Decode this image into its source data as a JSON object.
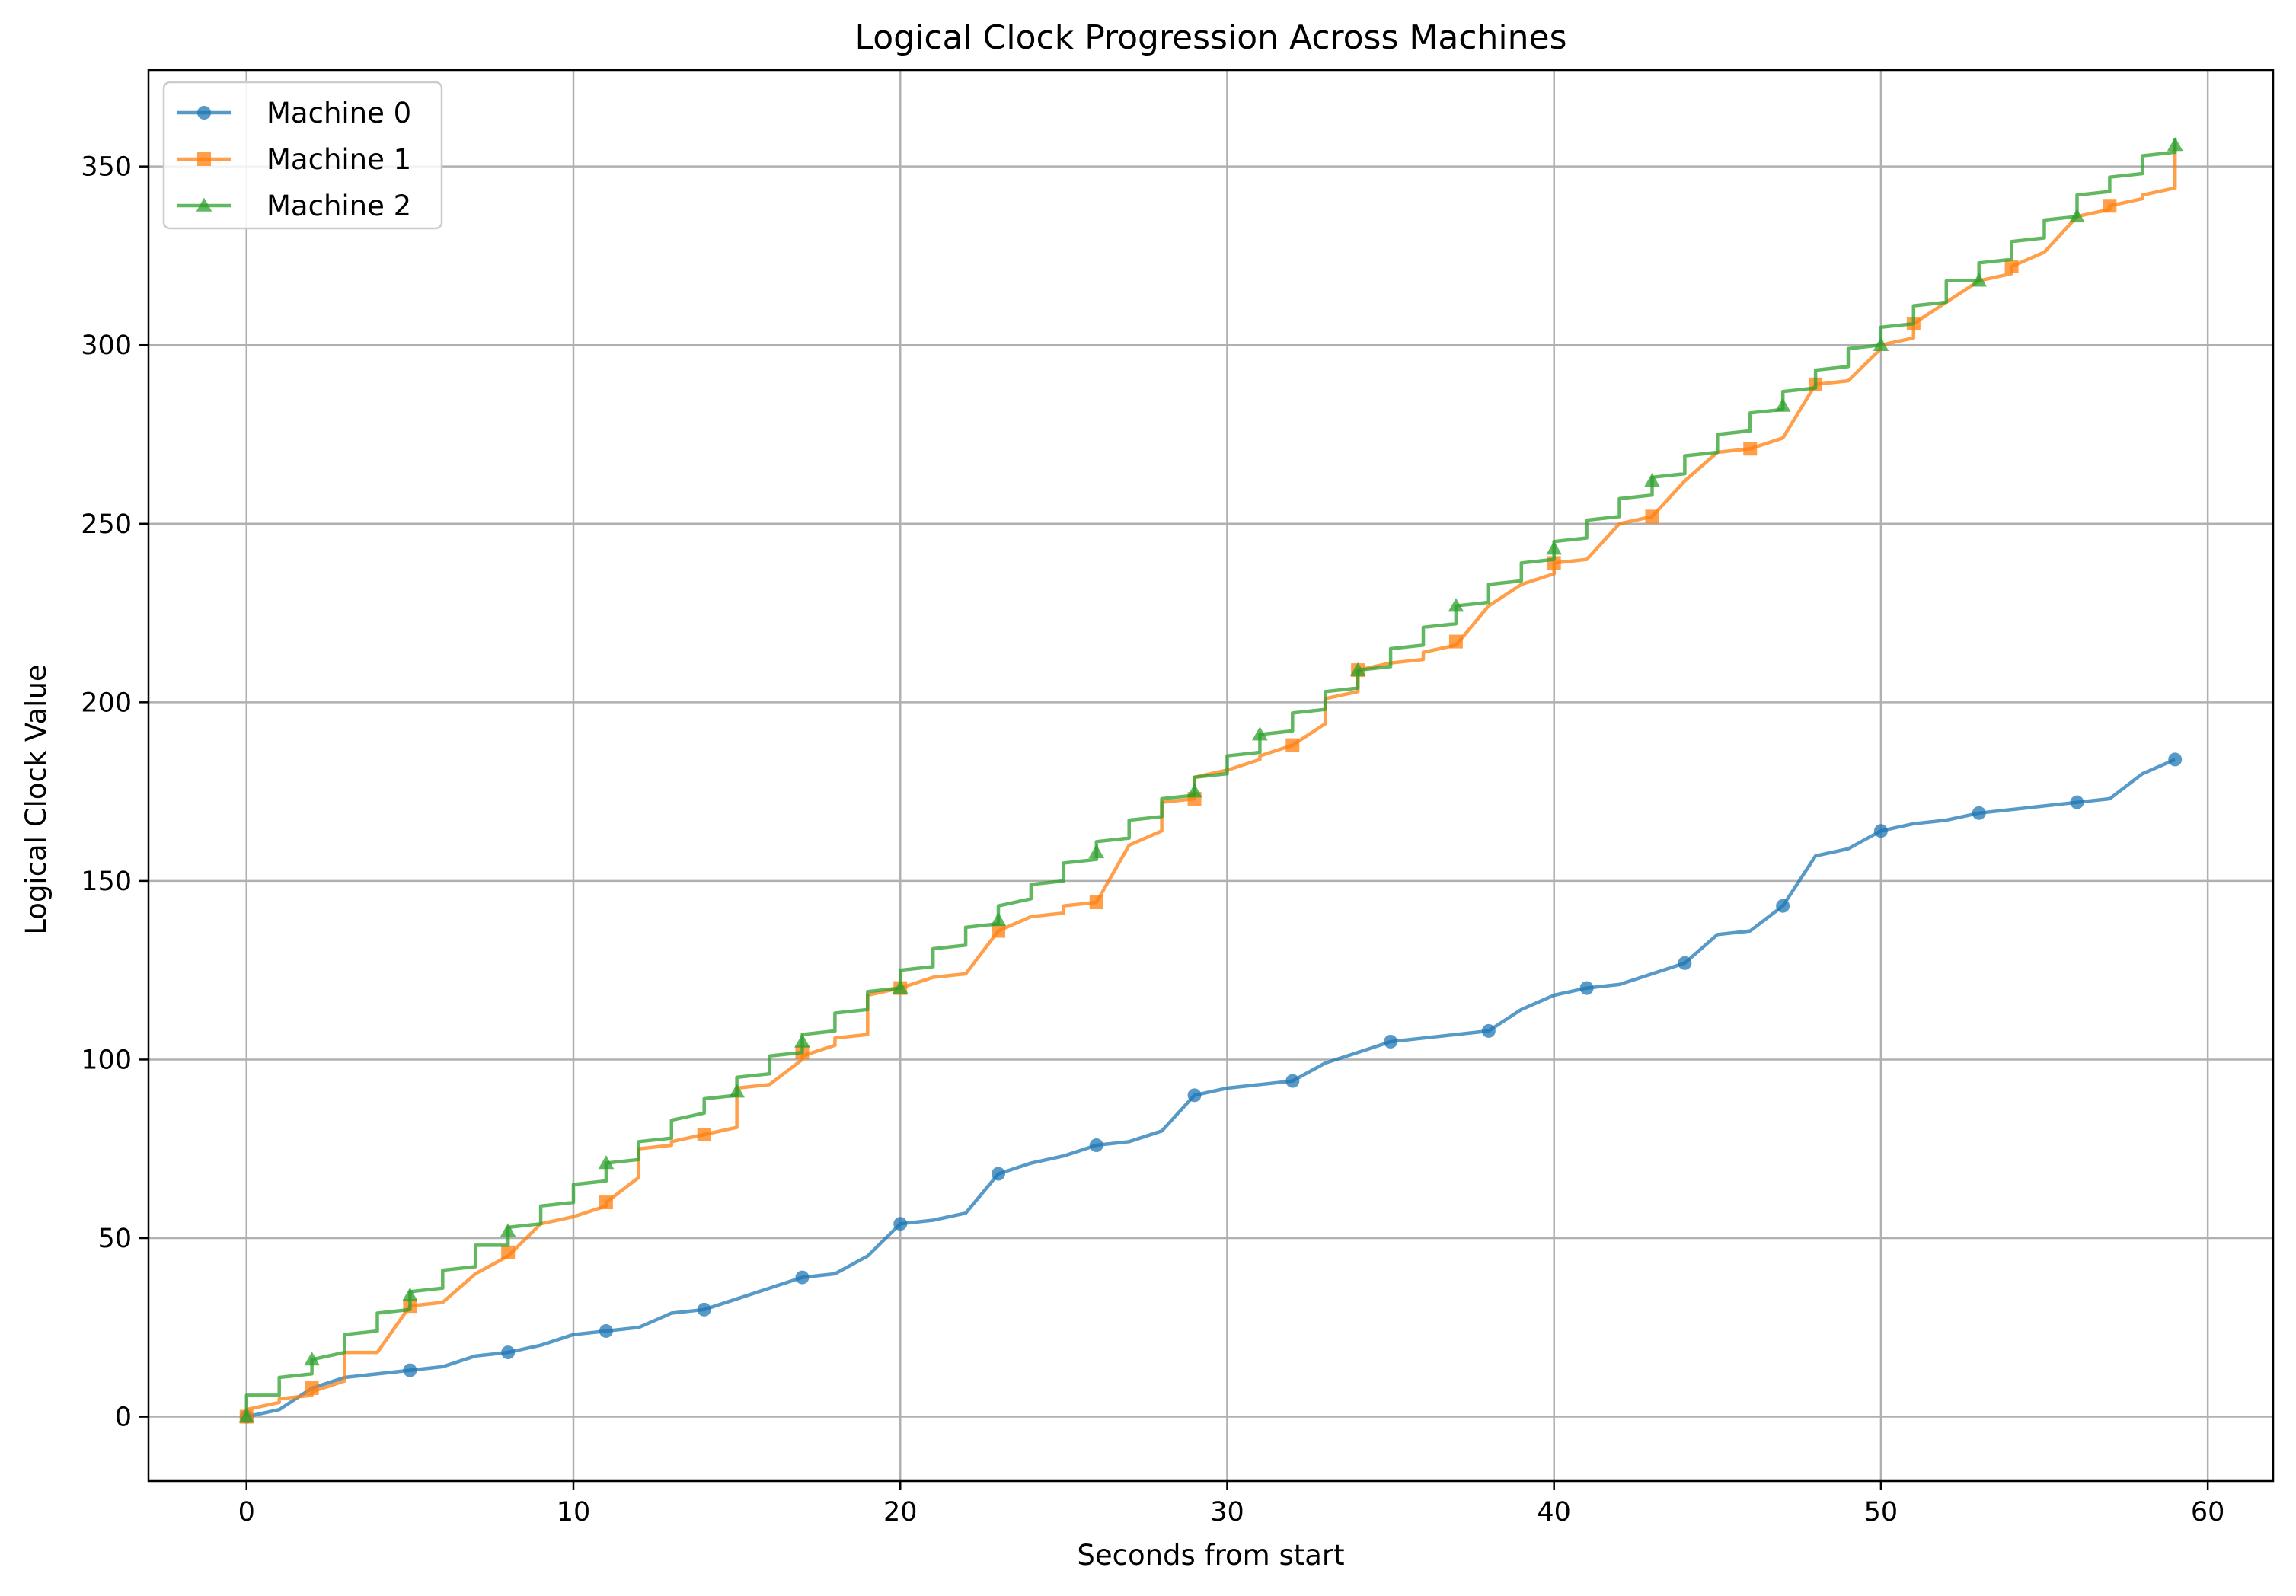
{
  "chart_data": {
    "type": "line",
    "title": "Logical Clock Progression Across Machines",
    "xlabel": "Seconds from start",
    "ylabel": "Logical Clock Value",
    "xlim": [
      -3,
      62
    ],
    "ylim": [
      -18,
      377
    ],
    "xticks": [
      0,
      10,
      20,
      30,
      40,
      50,
      60
    ],
    "yticks": [
      0,
      50,
      100,
      150,
      200,
      250,
      300,
      350
    ],
    "grid": true,
    "legend_position": "top-left",
    "series": [
      {
        "name": "Machine 0",
        "color": "#1f77b4",
        "marker": "circle",
        "points": [
          [
            0,
            0
          ],
          [
            1,
            2
          ],
          [
            2,
            8
          ],
          [
            3,
            11
          ],
          [
            5,
            13
          ],
          [
            6,
            14
          ],
          [
            7,
            17
          ],
          [
            8,
            18
          ],
          [
            9,
            20
          ],
          [
            10,
            23
          ],
          [
            11,
            24
          ],
          [
            12,
            25
          ],
          [
            13,
            29
          ],
          [
            14,
            30
          ],
          [
            15,
            33
          ],
          [
            16,
            36
          ],
          [
            17,
            39
          ],
          [
            18,
            40
          ],
          [
            19,
            45
          ],
          [
            20,
            54
          ],
          [
            21,
            55
          ],
          [
            22,
            57
          ],
          [
            23,
            68
          ],
          [
            24,
            71
          ],
          [
            25,
            73
          ],
          [
            26,
            76
          ],
          [
            27,
            77
          ],
          [
            28,
            80
          ],
          [
            29,
            90
          ],
          [
            30,
            92
          ],
          [
            31,
            93
          ],
          [
            32,
            94
          ],
          [
            33,
            99
          ],
          [
            34,
            102
          ],
          [
            35,
            105
          ],
          [
            36,
            106
          ],
          [
            37,
            107
          ],
          [
            38,
            108
          ],
          [
            39,
            114
          ],
          [
            40,
            118
          ],
          [
            41,
            120
          ],
          [
            42,
            121
          ],
          [
            43,
            124
          ],
          [
            44,
            127
          ],
          [
            45,
            135
          ],
          [
            46,
            136
          ],
          [
            47,
            143
          ],
          [
            48,
            157
          ],
          [
            49,
            159
          ],
          [
            50,
            164
          ],
          [
            51,
            166
          ],
          [
            52,
            167
          ],
          [
            53,
            169
          ],
          [
            54,
            170
          ],
          [
            55,
            171
          ],
          [
            56,
            172
          ],
          [
            57,
            173
          ],
          [
            58,
            180
          ],
          [
            59,
            184
          ]
        ],
        "marker_points": [
          [
            0,
            0
          ],
          [
            5,
            13
          ],
          [
            8,
            18
          ],
          [
            11,
            24
          ],
          [
            14,
            30
          ],
          [
            17,
            39
          ],
          [
            20,
            54
          ],
          [
            23,
            68
          ],
          [
            26,
            76
          ],
          [
            29,
            90
          ],
          [
            32,
            94
          ],
          [
            35,
            105
          ],
          [
            38,
            108
          ],
          [
            41,
            120
          ],
          [
            44,
            127
          ],
          [
            47,
            143
          ],
          [
            50,
            164
          ],
          [
            53,
            169
          ],
          [
            56,
            172
          ],
          [
            59,
            184
          ]
        ]
      },
      {
        "name": "Machine 1",
        "color": "#ff7f0e",
        "marker": "square",
        "points": [
          [
            0,
            0
          ],
          [
            0,
            2
          ],
          [
            1,
            4
          ],
          [
            1,
            5
          ],
          [
            2,
            6
          ],
          [
            2,
            7
          ],
          [
            3,
            10
          ],
          [
            3,
            18
          ],
          [
            4,
            18
          ],
          [
            5,
            31
          ],
          [
            6,
            32
          ],
          [
            7,
            40
          ],
          [
            8,
            45
          ],
          [
            9,
            54
          ],
          [
            10,
            56
          ],
          [
            11,
            59
          ],
          [
            11,
            60
          ],
          [
            12,
            67
          ],
          [
            12,
            75
          ],
          [
            13,
            76
          ],
          [
            13,
            77
          ],
          [
            14,
            79
          ],
          [
            15,
            81
          ],
          [
            15,
            92
          ],
          [
            16,
            93
          ],
          [
            17,
            100
          ],
          [
            17,
            101
          ],
          [
            18,
            104
          ],
          [
            18,
            106
          ],
          [
            19,
            107
          ],
          [
            19,
            118
          ],
          [
            20,
            120
          ],
          [
            21,
            123
          ],
          [
            22,
            124
          ],
          [
            23,
            136
          ],
          [
            24,
            140
          ],
          [
            25,
            141
          ],
          [
            25,
            143
          ],
          [
            26,
            144
          ],
          [
            27,
            160
          ],
          [
            28,
            164
          ],
          [
            28,
            172
          ],
          [
            29,
            173
          ],
          [
            29,
            179
          ],
          [
            30,
            181
          ],
          [
            31,
            184
          ],
          [
            31,
            185
          ],
          [
            32,
            188
          ],
          [
            33,
            194
          ],
          [
            33,
            201
          ],
          [
            34,
            203
          ],
          [
            34,
            209
          ],
          [
            35,
            211
          ],
          [
            36,
            212
          ],
          [
            36,
            214
          ],
          [
            37,
            216
          ],
          [
            38,
            227
          ],
          [
            39,
            233
          ],
          [
            40,
            236
          ],
          [
            40,
            239
          ],
          [
            41,
            240
          ],
          [
            42,
            250
          ],
          [
            43,
            252
          ],
          [
            44,
            262
          ],
          [
            45,
            270
          ],
          [
            46,
            271
          ],
          [
            47,
            274
          ],
          [
            48,
            289
          ],
          [
            49,
            290
          ],
          [
            50,
            299
          ],
          [
            50,
            300
          ],
          [
            51,
            302
          ],
          [
            51,
            306
          ],
          [
            52,
            312
          ],
          [
            53,
            318
          ],
          [
            54,
            320
          ],
          [
            54,
            322
          ],
          [
            55,
            326
          ],
          [
            56,
            336
          ],
          [
            57,
            338
          ],
          [
            57,
            339
          ],
          [
            58,
            341
          ],
          [
            58,
            342
          ],
          [
            59,
            344
          ],
          [
            59,
            356
          ]
        ],
        "marker_points": [
          [
            0,
            0
          ],
          [
            2,
            8
          ],
          [
            5,
            31
          ],
          [
            8,
            46
          ],
          [
            11,
            60
          ],
          [
            14,
            79
          ],
          [
            17,
            102
          ],
          [
            20,
            120
          ],
          [
            23,
            136
          ],
          [
            26,
            144
          ],
          [
            29,
            173
          ],
          [
            32,
            188
          ],
          [
            34,
            209
          ],
          [
            37,
            217
          ],
          [
            40,
            239
          ],
          [
            43,
            252
          ],
          [
            46,
            271
          ],
          [
            48,
            289
          ],
          [
            51,
            306
          ],
          [
            54,
            322
          ],
          [
            57,
            339
          ]
        ]
      },
      {
        "name": "Machine 2",
        "color": "#2ca02c",
        "marker": "triangle",
        "points": [
          [
            0,
            0
          ],
          [
            0,
            6
          ],
          [
            1,
            6
          ],
          [
            1,
            11
          ],
          [
            2,
            12
          ],
          [
            2,
            16
          ],
          [
            3,
            18
          ],
          [
            3,
            23
          ],
          [
            4,
            24
          ],
          [
            4,
            29
          ],
          [
            5,
            30
          ],
          [
            5,
            35
          ],
          [
            6,
            36
          ],
          [
            6,
            41
          ],
          [
            7,
            42
          ],
          [
            7,
            48
          ],
          [
            8,
            48
          ],
          [
            8,
            53
          ],
          [
            9,
            54
          ],
          [
            9,
            59
          ],
          [
            10,
            60
          ],
          [
            10,
            65
          ],
          [
            11,
            66
          ],
          [
            11,
            71
          ],
          [
            12,
            72
          ],
          [
            12,
            77
          ],
          [
            13,
            78
          ],
          [
            13,
            83
          ],
          [
            14,
            85
          ],
          [
            14,
            89
          ],
          [
            15,
            90
          ],
          [
            15,
            95
          ],
          [
            16,
            96
          ],
          [
            16,
            101
          ],
          [
            17,
            102
          ],
          [
            17,
            107
          ],
          [
            18,
            108
          ],
          [
            18,
            113
          ],
          [
            19,
            114
          ],
          [
            19,
            119
          ],
          [
            20,
            120
          ],
          [
            20,
            125
          ],
          [
            21,
            126
          ],
          [
            21,
            131
          ],
          [
            22,
            132
          ],
          [
            22,
            137
          ],
          [
            23,
            138
          ],
          [
            23,
            143
          ],
          [
            24,
            145
          ],
          [
            24,
            149
          ],
          [
            25,
            150
          ],
          [
            25,
            155
          ],
          [
            26,
            156
          ],
          [
            26,
            161
          ],
          [
            27,
            162
          ],
          [
            27,
            167
          ],
          [
            28,
            168
          ],
          [
            28,
            173
          ],
          [
            29,
            174
          ],
          [
            29,
            179
          ],
          [
            30,
            180
          ],
          [
            30,
            185
          ],
          [
            31,
            186
          ],
          [
            31,
            191
          ],
          [
            32,
            192
          ],
          [
            32,
            197
          ],
          [
            33,
            198
          ],
          [
            33,
            203
          ],
          [
            34,
            204
          ],
          [
            34,
            209
          ],
          [
            35,
            210
          ],
          [
            35,
            215
          ],
          [
            36,
            216
          ],
          [
            36,
            221
          ],
          [
            37,
            222
          ],
          [
            37,
            227
          ],
          [
            38,
            228
          ],
          [
            38,
            233
          ],
          [
            39,
            234
          ],
          [
            39,
            239
          ],
          [
            40,
            240
          ],
          [
            40,
            245
          ],
          [
            41,
            246
          ],
          [
            41,
            251
          ],
          [
            42,
            252
          ],
          [
            42,
            257
          ],
          [
            43,
            258
          ],
          [
            43,
            263
          ],
          [
            44,
            264
          ],
          [
            44,
            269
          ],
          [
            45,
            270
          ],
          [
            45,
            275
          ],
          [
            46,
            276
          ],
          [
            46,
            281
          ],
          [
            47,
            282
          ],
          [
            47,
            287
          ],
          [
            48,
            288
          ],
          [
            48,
            293
          ],
          [
            49,
            294
          ],
          [
            49,
            299
          ],
          [
            50,
            300
          ],
          [
            50,
            305
          ],
          [
            51,
            306
          ],
          [
            51,
            311
          ],
          [
            52,
            312
          ],
          [
            52,
            318
          ],
          [
            53,
            318
          ],
          [
            53,
            323
          ],
          [
            54,
            324
          ],
          [
            54,
            329
          ],
          [
            55,
            330
          ],
          [
            55,
            335
          ],
          [
            56,
            336
          ],
          [
            56,
            342
          ],
          [
            57,
            343
          ],
          [
            57,
            347
          ],
          [
            58,
            348
          ],
          [
            58,
            353
          ],
          [
            59,
            354
          ],
          [
            59,
            358
          ]
        ],
        "marker_points": [
          [
            0,
            0
          ],
          [
            2,
            16
          ],
          [
            5,
            34
          ],
          [
            8,
            52
          ],
          [
            11,
            71
          ],
          [
            15,
            91
          ],
          [
            17,
            105
          ],
          [
            20,
            120
          ],
          [
            23,
            139
          ],
          [
            26,
            158
          ],
          [
            29,
            175
          ],
          [
            31,
            191
          ],
          [
            34,
            209
          ],
          [
            37,
            227
          ],
          [
            40,
            243
          ],
          [
            43,
            262
          ],
          [
            47,
            283
          ],
          [
            50,
            300
          ],
          [
            53,
            318
          ],
          [
            56,
            336
          ],
          [
            59,
            356
          ]
        ]
      }
    ]
  }
}
